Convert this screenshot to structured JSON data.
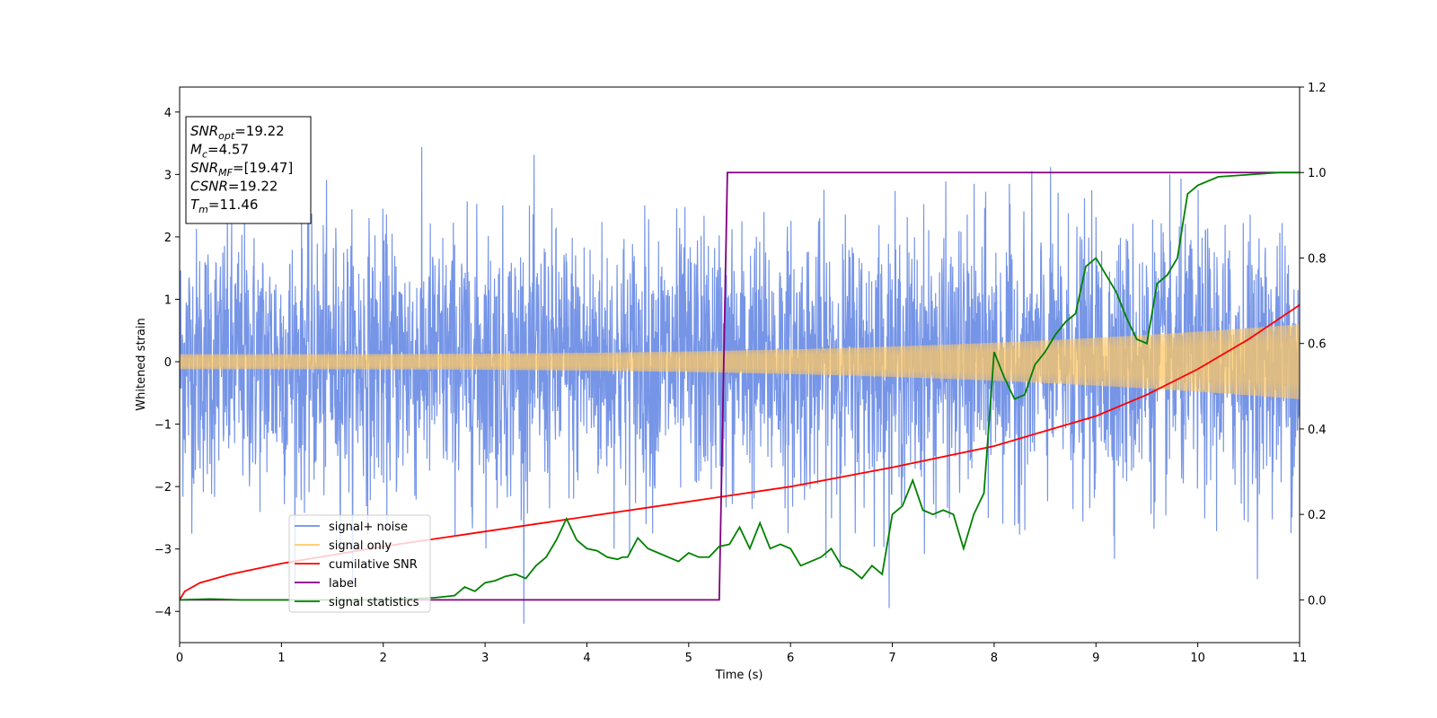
{
  "chart_data": {
    "type": "line",
    "xlabel": "Time (s)",
    "ylabel": "Whitened strain",
    "xlim": [
      0,
      11
    ],
    "ylim": [
      -4.5,
      4.4
    ],
    "y2lim": [
      -0.1,
      1.2
    ],
    "x_ticks": [
      "0",
      "1",
      "2",
      "3",
      "4",
      "5",
      "6",
      "7",
      "8",
      "9",
      "10",
      "11"
    ],
    "y_ticks": [
      "−4",
      "−3",
      "−2",
      "−1",
      "0",
      "1",
      "2",
      "3",
      "4"
    ],
    "y2_ticks": [
      "0.0",
      "0.2",
      "0.4",
      "0.6",
      "0.8",
      "1.0",
      "1.2"
    ],
    "grid": false,
    "legend_position": "lower-left",
    "info_box": [
      {
        "main": "SNR",
        "sub": "opt",
        "value": "=19.22"
      },
      {
        "main": "M",
        "sub": "c",
        "value": "=4.57"
      },
      {
        "main": "SNR",
        "sub": "MF",
        "value": "=[19.47]"
      },
      {
        "main": "CSNR",
        "sub": "",
        "value": "=19.22"
      },
      {
        "main": "T",
        "sub": "m",
        "value": "=11.46"
      }
    ],
    "series": [
      {
        "name": "signal+ noise",
        "color": "#6f8fe6",
        "axis": "left",
        "description_values": {
          "noise_sigma": 1.05,
          "noise_range": [
            -4.2,
            4.0
          ]
        }
      },
      {
        "name": "signal only",
        "color": "#ffc864",
        "axis": "left",
        "amplitude_start": 0.12,
        "amplitude_end": 0.6
      },
      {
        "name": "cumilative SNR",
        "color": "#ff0000",
        "axis": "right",
        "x": [
          0,
          0.05,
          0.2,
          0.5,
          1,
          2,
          3,
          4,
          5,
          6,
          7,
          8,
          9,
          9.5,
          10,
          10.5,
          11
        ],
        "y": [
          0.0,
          0.02,
          0.04,
          0.06,
          0.085,
          0.125,
          0.16,
          0.195,
          0.23,
          0.265,
          0.31,
          0.36,
          0.43,
          0.48,
          0.54,
          0.61,
          0.69
        ]
      },
      {
        "name": "label",
        "color": "#800080",
        "axis": "right",
        "x": [
          0,
          5.3,
          5.38,
          11
        ],
        "y": [
          0.0,
          0.0,
          1.0,
          1.0
        ]
      },
      {
        "name": "signal statistics",
        "color": "#008000",
        "axis": "right",
        "x": [
          0,
          0.3,
          0.6,
          1,
          2,
          2.5,
          2.7,
          2.8,
          2.9,
          3.0,
          3.1,
          3.2,
          3.3,
          3.4,
          3.5,
          3.6,
          3.7,
          3.8,
          3.9,
          4.0,
          4.1,
          4.2,
          4.3,
          4.35,
          4.4,
          4.5,
          4.6,
          4.7,
          4.8,
          4.9,
          5.0,
          5.1,
          5.2,
          5.3,
          5.4,
          5.5,
          5.6,
          5.7,
          5.8,
          5.9,
          6.0,
          6.1,
          6.2,
          6.3,
          6.4,
          6.5,
          6.6,
          6.7,
          6.8,
          6.9,
          7.0,
          7.1,
          7.2,
          7.3,
          7.4,
          7.5,
          7.6,
          7.7,
          7.8,
          7.9,
          8.0,
          8.1,
          8.2,
          8.3,
          8.4,
          8.5,
          8.6,
          8.7,
          8.8,
          8.9,
          9.0,
          9.1,
          9.2,
          9.3,
          9.4,
          9.5,
          9.6,
          9.7,
          9.8,
          9.9,
          10.0,
          10.2,
          10.5,
          10.8,
          11.0
        ],
        "y": [
          0.0,
          0.002,
          0.0,
          0.0,
          0.0,
          0.005,
          0.01,
          0.03,
          0.02,
          0.04,
          0.045,
          0.055,
          0.06,
          0.05,
          0.08,
          0.1,
          0.14,
          0.19,
          0.14,
          0.12,
          0.115,
          0.1,
          0.095,
          0.1,
          0.1,
          0.145,
          0.12,
          0.11,
          0.1,
          0.09,
          0.11,
          0.1,
          0.1,
          0.125,
          0.13,
          0.17,
          0.12,
          0.18,
          0.12,
          0.13,
          0.12,
          0.08,
          0.09,
          0.1,
          0.12,
          0.08,
          0.07,
          0.05,
          0.08,
          0.06,
          0.2,
          0.22,
          0.28,
          0.21,
          0.2,
          0.21,
          0.2,
          0.12,
          0.2,
          0.25,
          0.58,
          0.52,
          0.47,
          0.48,
          0.55,
          0.58,
          0.62,
          0.65,
          0.67,
          0.78,
          0.8,
          0.76,
          0.72,
          0.66,
          0.61,
          0.6,
          0.74,
          0.76,
          0.8,
          0.95,
          0.97,
          0.99,
          0.995,
          1.0,
          1.0
        ]
      }
    ]
  }
}
